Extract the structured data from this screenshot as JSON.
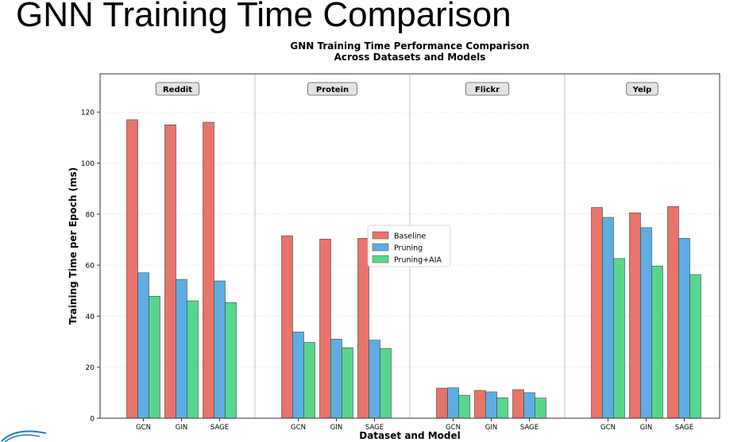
{
  "slide": {
    "title": "GNN Training Time Comparison"
  },
  "chart_data": {
    "type": "bar",
    "title": "GNN Training Time Performance Comparison\nAcross Datasets and Models",
    "xlabel": "Dataset and Model",
    "ylabel": "Training Time per Epoch (ms)",
    "ylim": [
      0,
      135
    ],
    "yticks": [
      0,
      20,
      40,
      60,
      80,
      100,
      120
    ],
    "grid": true,
    "legend_position": "center",
    "groups": [
      "Reddit",
      "Protein",
      "Flickr",
      "Yelp"
    ],
    "models": [
      "GCN",
      "GIN",
      "SAGE"
    ],
    "series": [
      {
        "name": "Baseline",
        "color": "#e8736a",
        "values": [
          [
            117,
            115,
            116
          ],
          [
            71.5,
            70.2,
            70.5
          ],
          [
            11.8,
            10.9,
            11.2
          ],
          [
            82.6,
            80.5,
            83.0
          ]
        ]
      },
      {
        "name": "Pruning",
        "color": "#5dade2",
        "values": [
          [
            57,
            54.4,
            53.8
          ],
          [
            33.8,
            31.0,
            30.6
          ],
          [
            11.9,
            10.3,
            10.0
          ],
          [
            78.7,
            74.7,
            70.5
          ]
        ]
      },
      {
        "name": "Pruning+AIA",
        "color": "#58d68d",
        "values": [
          [
            47.8,
            46.0,
            45.3
          ],
          [
            29.7,
            27.6,
            27.3
          ],
          [
            9.0,
            8.0,
            7.9
          ],
          [
            62.6,
            59.6,
            56.3
          ]
        ]
      }
    ]
  }
}
